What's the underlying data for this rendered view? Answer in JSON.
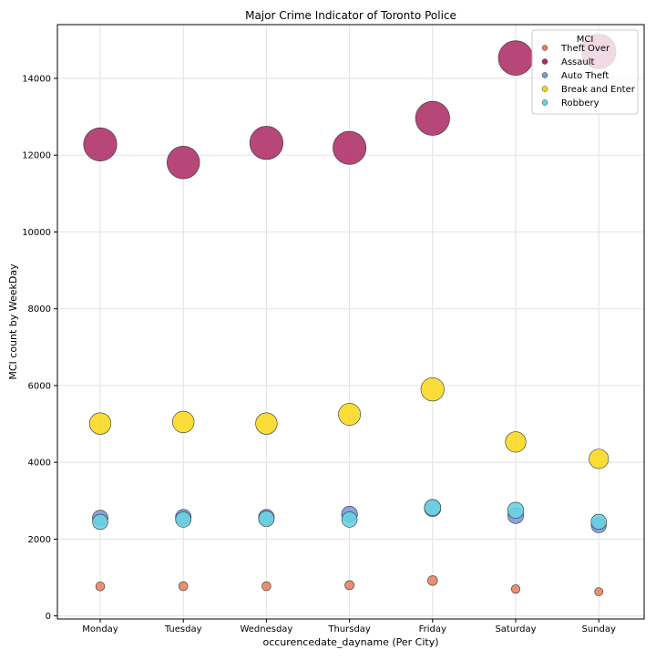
{
  "chart_data": {
    "type": "scatter",
    "title": "Major Crime Indicator of Toronto Police",
    "xlabel": "occurencedate_dayname (Per City)",
    "ylabel": "MCI count by WeekDay",
    "categories": [
      "Monday",
      "Tuesday",
      "Wednesday",
      "Thursday",
      "Friday",
      "Saturday",
      "Sunday"
    ],
    "ylim": [
      -80,
      15400
    ],
    "yticks": [
      "0",
      "2000",
      "4000",
      "6000",
      "8000",
      "10000",
      "12000",
      "14000"
    ],
    "grid": true,
    "legend": {
      "title": "MCI",
      "placement": "top-right"
    },
    "series": [
      {
        "name": "Theft Over",
        "color": "#e8805f",
        "values": [
          770,
          775,
          775,
          800,
          920,
          700,
          630
        ]
      },
      {
        "name": "Assault",
        "color": "#ad2d66",
        "values": [
          12280,
          11810,
          12320,
          12190,
          12960,
          14530,
          14700
        ]
      },
      {
        "name": "Auto Theft",
        "color": "#7b96dc",
        "values": [
          2550,
          2570,
          2570,
          2650,
          2800,
          2610,
          2360
        ]
      },
      {
        "name": "Break and Enter",
        "color": "#f9d81c",
        "values": [
          5010,
          5050,
          5010,
          5250,
          5900,
          4530,
          4090
        ]
      },
      {
        "name": "Robbery",
        "color": "#68d3e2",
        "values": [
          2450,
          2510,
          2530,
          2510,
          2820,
          2750,
          2450
        ]
      }
    ]
  }
}
